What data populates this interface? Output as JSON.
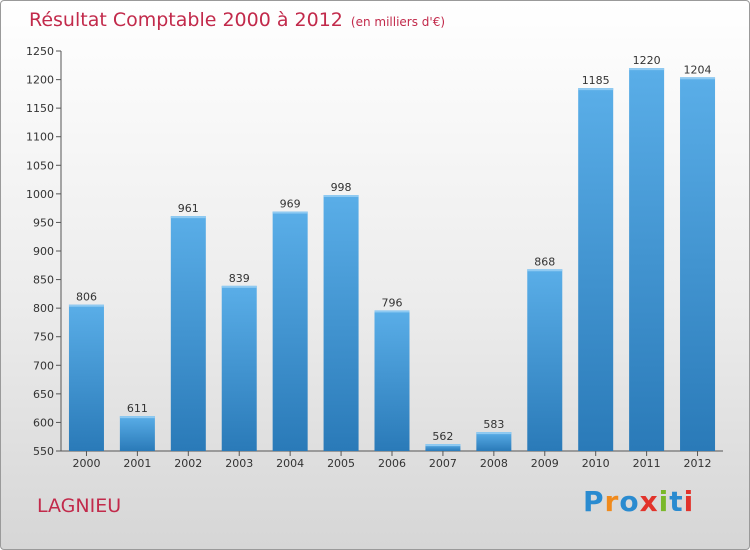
{
  "title": "Résultat Comptable 2000 à 2012",
  "subtitle": "(en milliers d'€)",
  "location": "LAGNIEU",
  "brand": "Proxiti",
  "colors": {
    "title": "#c22a4b",
    "bar_top": "#5aaee8",
    "bar_bottom": "#2a7ab8",
    "logo_letters": [
      "#2a8bd0",
      "#f08a1c",
      "#2a8bd0",
      "#e2332b",
      "#7ab82a",
      "#2a8bd0",
      "#e2332b"
    ]
  },
  "chart_data": {
    "type": "bar",
    "categories": [
      "2000",
      "2001",
      "2002",
      "2003",
      "2004",
      "2005",
      "2006",
      "2007",
      "2008",
      "2009",
      "2010",
      "2011",
      "2012"
    ],
    "values": [
      806,
      611,
      961,
      839,
      969,
      998,
      796,
      562,
      583,
      868,
      1185,
      1220,
      1204
    ],
    "ylim": [
      550,
      1250
    ],
    "yticks": [
      550,
      600,
      650,
      700,
      750,
      800,
      850,
      900,
      950,
      1000,
      1050,
      1100,
      1150,
      1200,
      1250
    ],
    "grid": false,
    "legend": "none"
  }
}
